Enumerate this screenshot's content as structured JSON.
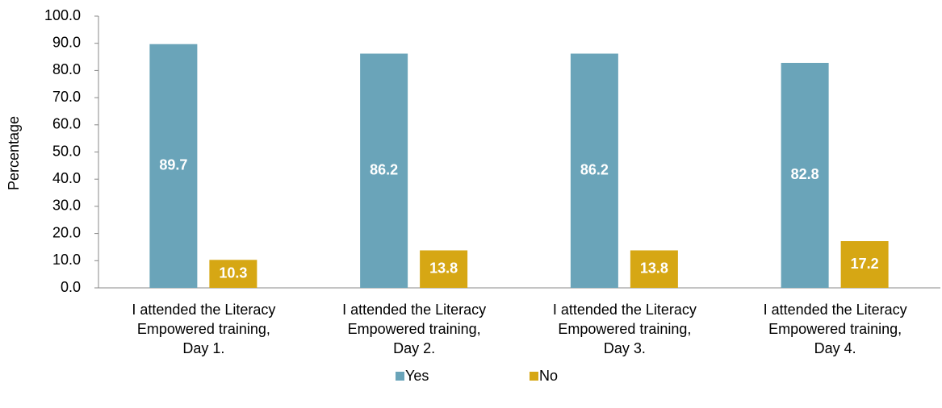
{
  "chart_data": {
    "type": "bar",
    "y_label": "Percentage",
    "categories": [
      "I attended the Literacy\nEmpowered training,\nDay 1.",
      "I attended the Literacy\nEmpowered training,\nDay 2.",
      "I attended the Literacy\nEmpowered training,\nDay 3.",
      "I attended the Literacy\nEmpowered training,\nDay 4."
    ],
    "series": [
      {
        "name": "Yes",
        "color": "#6aa4b9",
        "values": [
          89.7,
          86.2,
          86.2,
          82.8
        ]
      },
      {
        "name": "No",
        "color": "#d6a714",
        "values": [
          10.3,
          13.8,
          13.8,
          17.2
        ]
      }
    ],
    "ylim": [
      0,
      100
    ],
    "yticks": [
      {
        "value": 0,
        "label": "0.0"
      },
      {
        "value": 10,
        "label": "10.0"
      },
      {
        "value": 20,
        "label": "20.0"
      },
      {
        "value": 30,
        "label": "30.0"
      },
      {
        "value": 40,
        "label": "40.0"
      },
      {
        "value": 50,
        "label": "50.0"
      },
      {
        "value": 60,
        "label": "60.0"
      },
      {
        "value": 70,
        "label": "70.0"
      },
      {
        "value": 80,
        "label": "80.0"
      },
      {
        "value": 90,
        "label": "90.0"
      },
      {
        "value": 100,
        "label": "100.0"
      }
    ],
    "grid": false,
    "legend": "bottom"
  }
}
